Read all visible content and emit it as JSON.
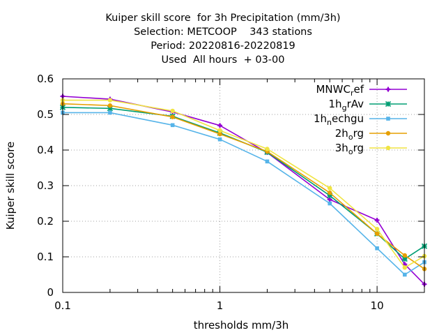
{
  "title_lines": [
    "Kuiper skill score  for 3h Precipitation (mm/3h)",
    "Selection: METCOOP    343 stations",
    "Period: 20220816-20220819",
    "Used  All hours  + 03-00"
  ],
  "chart_data": {
    "type": "line",
    "title": "Kuiper skill score  for 3h Precipitation (mm/3h)",
    "xlabel": "thresholds mm/3h",
    "ylabel": "Kuiper skill score",
    "xscale": "log",
    "xlim": [
      0.1,
      20
    ],
    "ylim": [
      0,
      0.6
    ],
    "grid": true,
    "legend_position": "top-right",
    "x_ticks": [
      {
        "value": 0.1,
        "label": "0.1"
      },
      {
        "value": 1,
        "label": "1"
      },
      {
        "value": 10,
        "label": "10"
      }
    ],
    "y_ticks": [
      {
        "value": 0,
        "label": "0"
      },
      {
        "value": 0.1,
        "label": "0.1"
      },
      {
        "value": 0.2,
        "label": "0.2"
      },
      {
        "value": 0.3,
        "label": "0.3"
      },
      {
        "value": 0.4,
        "label": "0.4"
      },
      {
        "value": 0.5,
        "label": "0.5"
      },
      {
        "value": 0.6,
        "label": "0.6"
      }
    ],
    "x": [
      0.1,
      0.2,
      0.5,
      1,
      2,
      5,
      10,
      15,
      20
    ],
    "series": [
      {
        "name": "MNWC_ref",
        "label_base": "MNWC",
        "label_sub": "r",
        "label_rest": "ef",
        "color": "#9400d3",
        "marker": "plus",
        "values": [
          0.551,
          0.543,
          0.507,
          0.469,
          0.393,
          0.261,
          0.203,
          0.079,
          0.023
        ]
      },
      {
        "name": "1h_grAv",
        "label_base": "1h",
        "label_sub": "g",
        "label_rest": "rAv",
        "color": "#009e73",
        "marker": "star",
        "values": [
          0.52,
          0.517,
          0.495,
          0.448,
          0.394,
          0.272,
          0.165,
          0.094,
          0.13
        ]
      },
      {
        "name": "1h_nechgu",
        "label_base": "1h",
        "label_sub": "n",
        "label_rest": "echgu",
        "color": "#56b4e9",
        "marker": "square",
        "values": [
          0.505,
          0.505,
          0.47,
          0.43,
          0.368,
          0.25,
          0.124,
          0.05,
          0.085
        ]
      },
      {
        "name": "2h_org",
        "label_base": "2h",
        "label_sub": "o",
        "label_rest": "rg",
        "color": "#e69f00",
        "marker": "circle",
        "values": [
          0.53,
          0.525,
          0.493,
          0.445,
          0.396,
          0.28,
          0.165,
          0.104,
          0.066
        ]
      },
      {
        "name": "3h_org",
        "label_base": "3h",
        "label_sub": "o",
        "label_rest": "rg",
        "color": "#f0e442",
        "marker": "circle",
        "values": [
          0.54,
          0.54,
          0.51,
          0.455,
          0.403,
          0.293,
          0.178,
          0.07,
          0.102
        ]
      }
    ]
  }
}
